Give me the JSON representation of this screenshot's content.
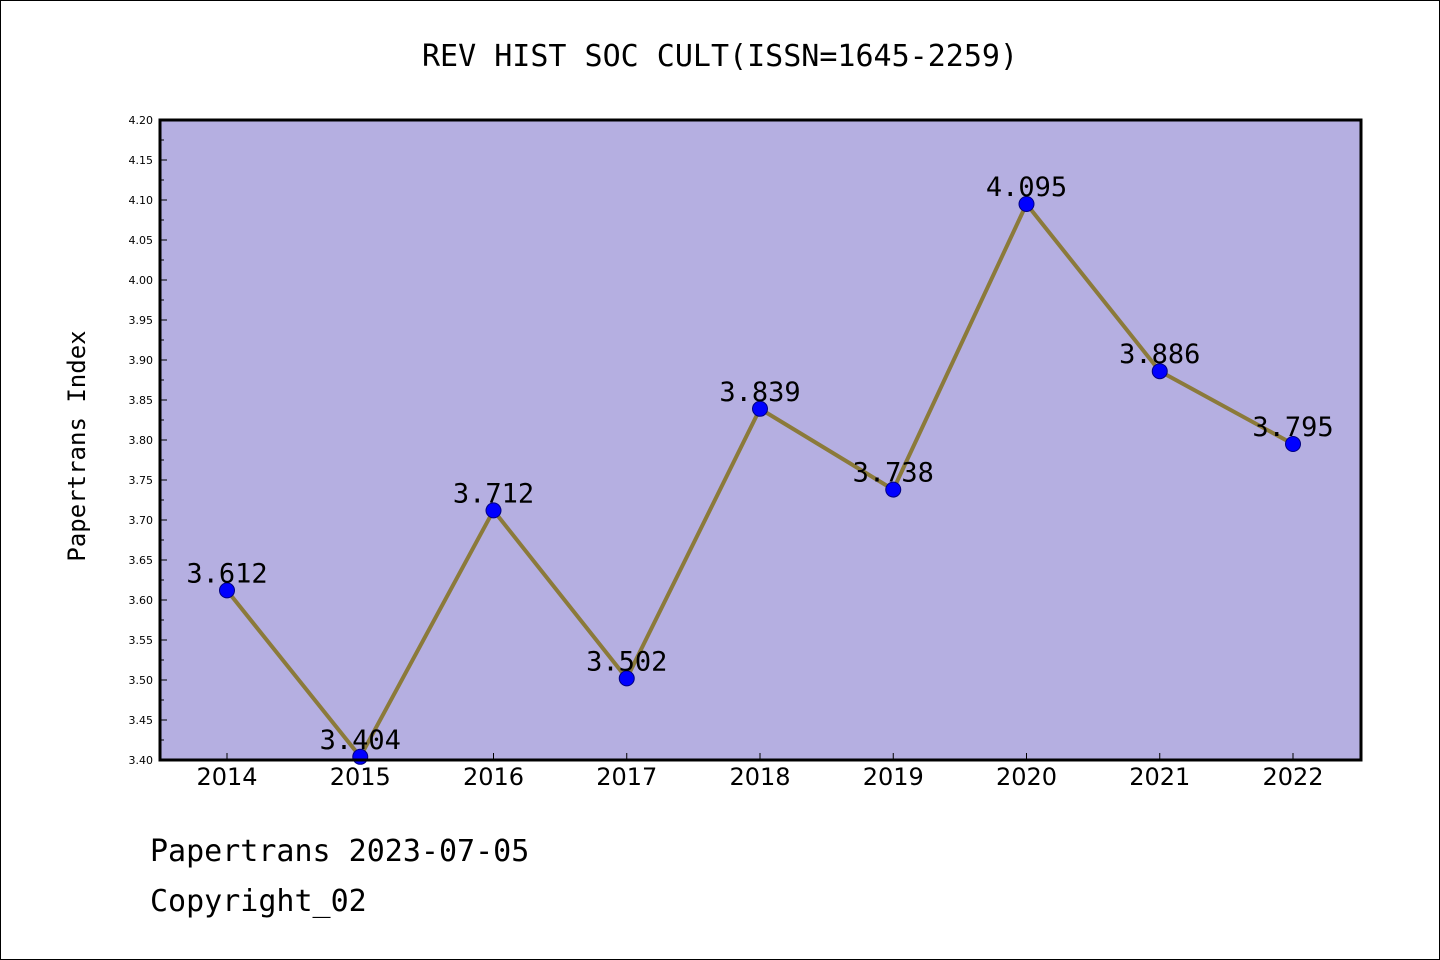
{
  "chart_data": {
    "type": "line",
    "title": "REV HIST SOC CULT(ISSN=1645-2259)",
    "xlabel": "",
    "ylabel": "Papertrans Index",
    "categories": [
      "2014",
      "2015",
      "2016",
      "2017",
      "2018",
      "2019",
      "2020",
      "2021",
      "2022"
    ],
    "values": [
      3.612,
      3.404,
      3.712,
      3.502,
      3.839,
      3.738,
      4.095,
      3.886,
      3.795
    ],
    "data_labels": [
      "3.612",
      "3.404",
      "3.712",
      "3.502",
      "3.839",
      "3.738",
      "4.095",
      "3.886",
      "3.795"
    ],
    "ylim": [
      3.4,
      4.2
    ],
    "yticks": [
      "3.40",
      "3.45",
      "3.50",
      "3.55",
      "3.60",
      "3.65",
      "3.70",
      "3.75",
      "3.80",
      "3.85",
      "3.90",
      "3.95",
      "4.00",
      "4.05",
      "4.10",
      "4.15",
      "4.20"
    ],
    "grid": false,
    "legend": "none",
    "colors": {
      "plot_background": "#b5afe1",
      "line": "#8b7a3a",
      "marker": "#0000ff"
    }
  },
  "footer": {
    "line1": "Papertrans 2023-07-05",
    "line2": "Copyright_02"
  }
}
